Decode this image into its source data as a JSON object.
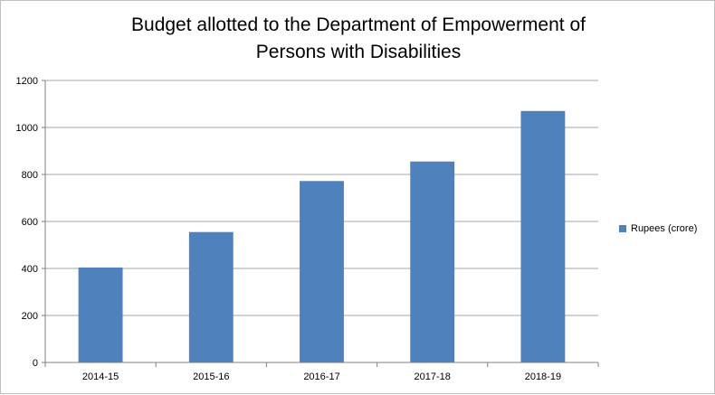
{
  "chart_data": {
    "type": "bar",
    "title_line1": "Budget allotted to the Department of Empowerment of",
    "title_line2": "Persons with Disabilities",
    "categories": [
      "2014-15",
      "2015-16",
      "2016-17",
      "2017-18",
      "2018-19"
    ],
    "series": [
      {
        "name": "Rupees (crore)",
        "values": [
          404,
          555,
          772,
          855,
          1070
        ]
      }
    ],
    "ylim": [
      0,
      1200
    ],
    "yticks": [
      0,
      200,
      400,
      600,
      800,
      1000,
      1200
    ],
    "grid": true,
    "legend": "right",
    "color": "#4f81bd"
  }
}
